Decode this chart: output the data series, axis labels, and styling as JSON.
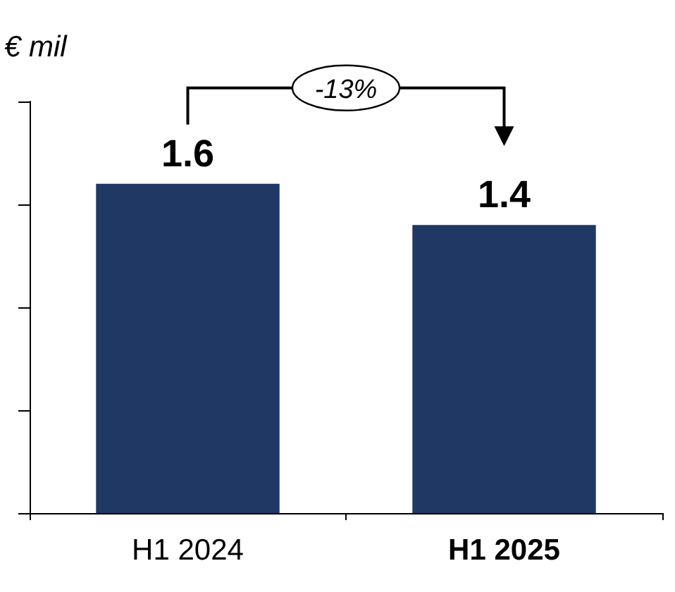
{
  "chart_data": {
    "type": "bar",
    "ylabel": "€ mil",
    "categories": [
      "H1 2024",
      "H1 2025"
    ],
    "values": [
      1.6,
      1.4
    ],
    "color": "#1f3864",
    "data_labels": true,
    "ylim": [
      0,
      2
    ],
    "yticks": [
      {
        "value": 0,
        "label": null
      },
      {
        "value": 0.5,
        "label": null
      },
      {
        "value": 1,
        "label": null
      },
      {
        "value": 1.5,
        "label": null
      },
      {
        "value": 2,
        "label": null
      }
    ],
    "tick_labels": "x",
    "annotations": [
      "-13%"
    ]
  }
}
